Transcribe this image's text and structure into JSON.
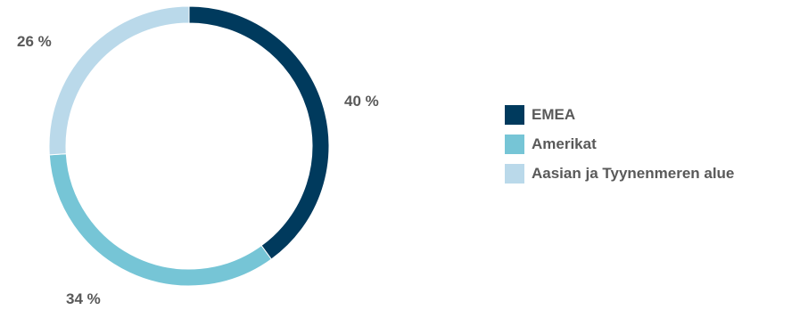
{
  "chart_data": {
    "type": "pie",
    "variant": "donut",
    "title": "",
    "legend_position": "right",
    "slices": [
      {
        "name": "EMEA",
        "value": 40,
        "label": "40 %",
        "color": "#003A5D"
      },
      {
        "name": "Amerikat",
        "value": 34,
        "label": "34 %",
        "color": "#76C5D6"
      },
      {
        "name": "Aasian ja Tyynenmeren alue",
        "value": 26,
        "label": "26 %",
        "color": "#BAD9EA"
      }
    ]
  }
}
